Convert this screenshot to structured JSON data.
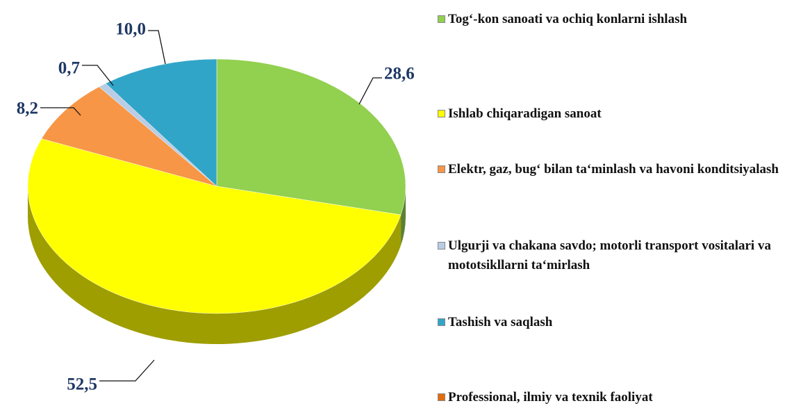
{
  "chart_data": {
    "type": "pie",
    "categories": [
      "Tog‘-kon sanoati va ochiq konlarni ishlash",
      "Ishlab chiqaradigan sanoat",
      "Elektr, gaz, bug‘ bilan ta‘minlash va havoni konditsiyalash",
      "Ulgurji va chakana savdo; motorli transport vositalari va mototsikllarni ta‘mirlash",
      "Tashish va saqlash",
      "Professional, ilmiy va texnik faoliyat"
    ],
    "values": [
      28.6,
      52.5,
      8.2,
      0.7,
      10.0,
      0
    ],
    "value_labels": [
      "28,6",
      "52,5",
      "8,2",
      "0,7",
      "10,0",
      null
    ],
    "colors": [
      "#92d050",
      "#ffff00",
      "#f79646",
      "#b9cde5",
      "#31a5c8",
      "#e36c09"
    ]
  }
}
